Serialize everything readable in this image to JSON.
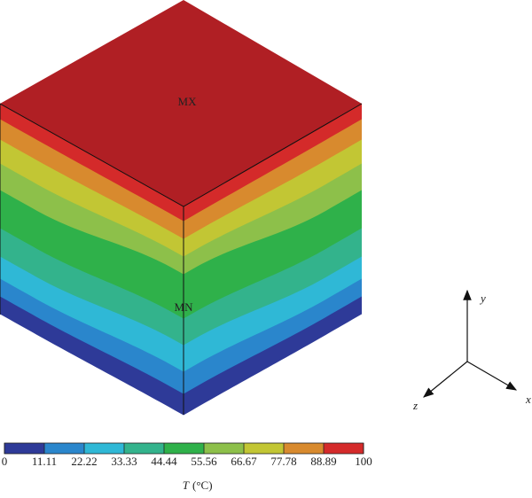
{
  "labels": {
    "max": "MX",
    "min": "MN"
  },
  "axes": {
    "x": "x",
    "y": "y",
    "z": "z"
  },
  "colorbar": {
    "ticks": [
      0,
      11.11,
      22.22,
      33.33,
      44.44,
      55.56,
      66.67,
      77.78,
      88.89,
      100
    ],
    "colors": [
      "#2e3a98",
      "#2a86cc",
      "#2fb8d6",
      "#33b38c",
      "#2fb14a",
      "#8dc04a",
      "#c2c634",
      "#d88a2e",
      "#d42a2a"
    ],
    "symbol": "T",
    "unit": "(°C)"
  }
}
